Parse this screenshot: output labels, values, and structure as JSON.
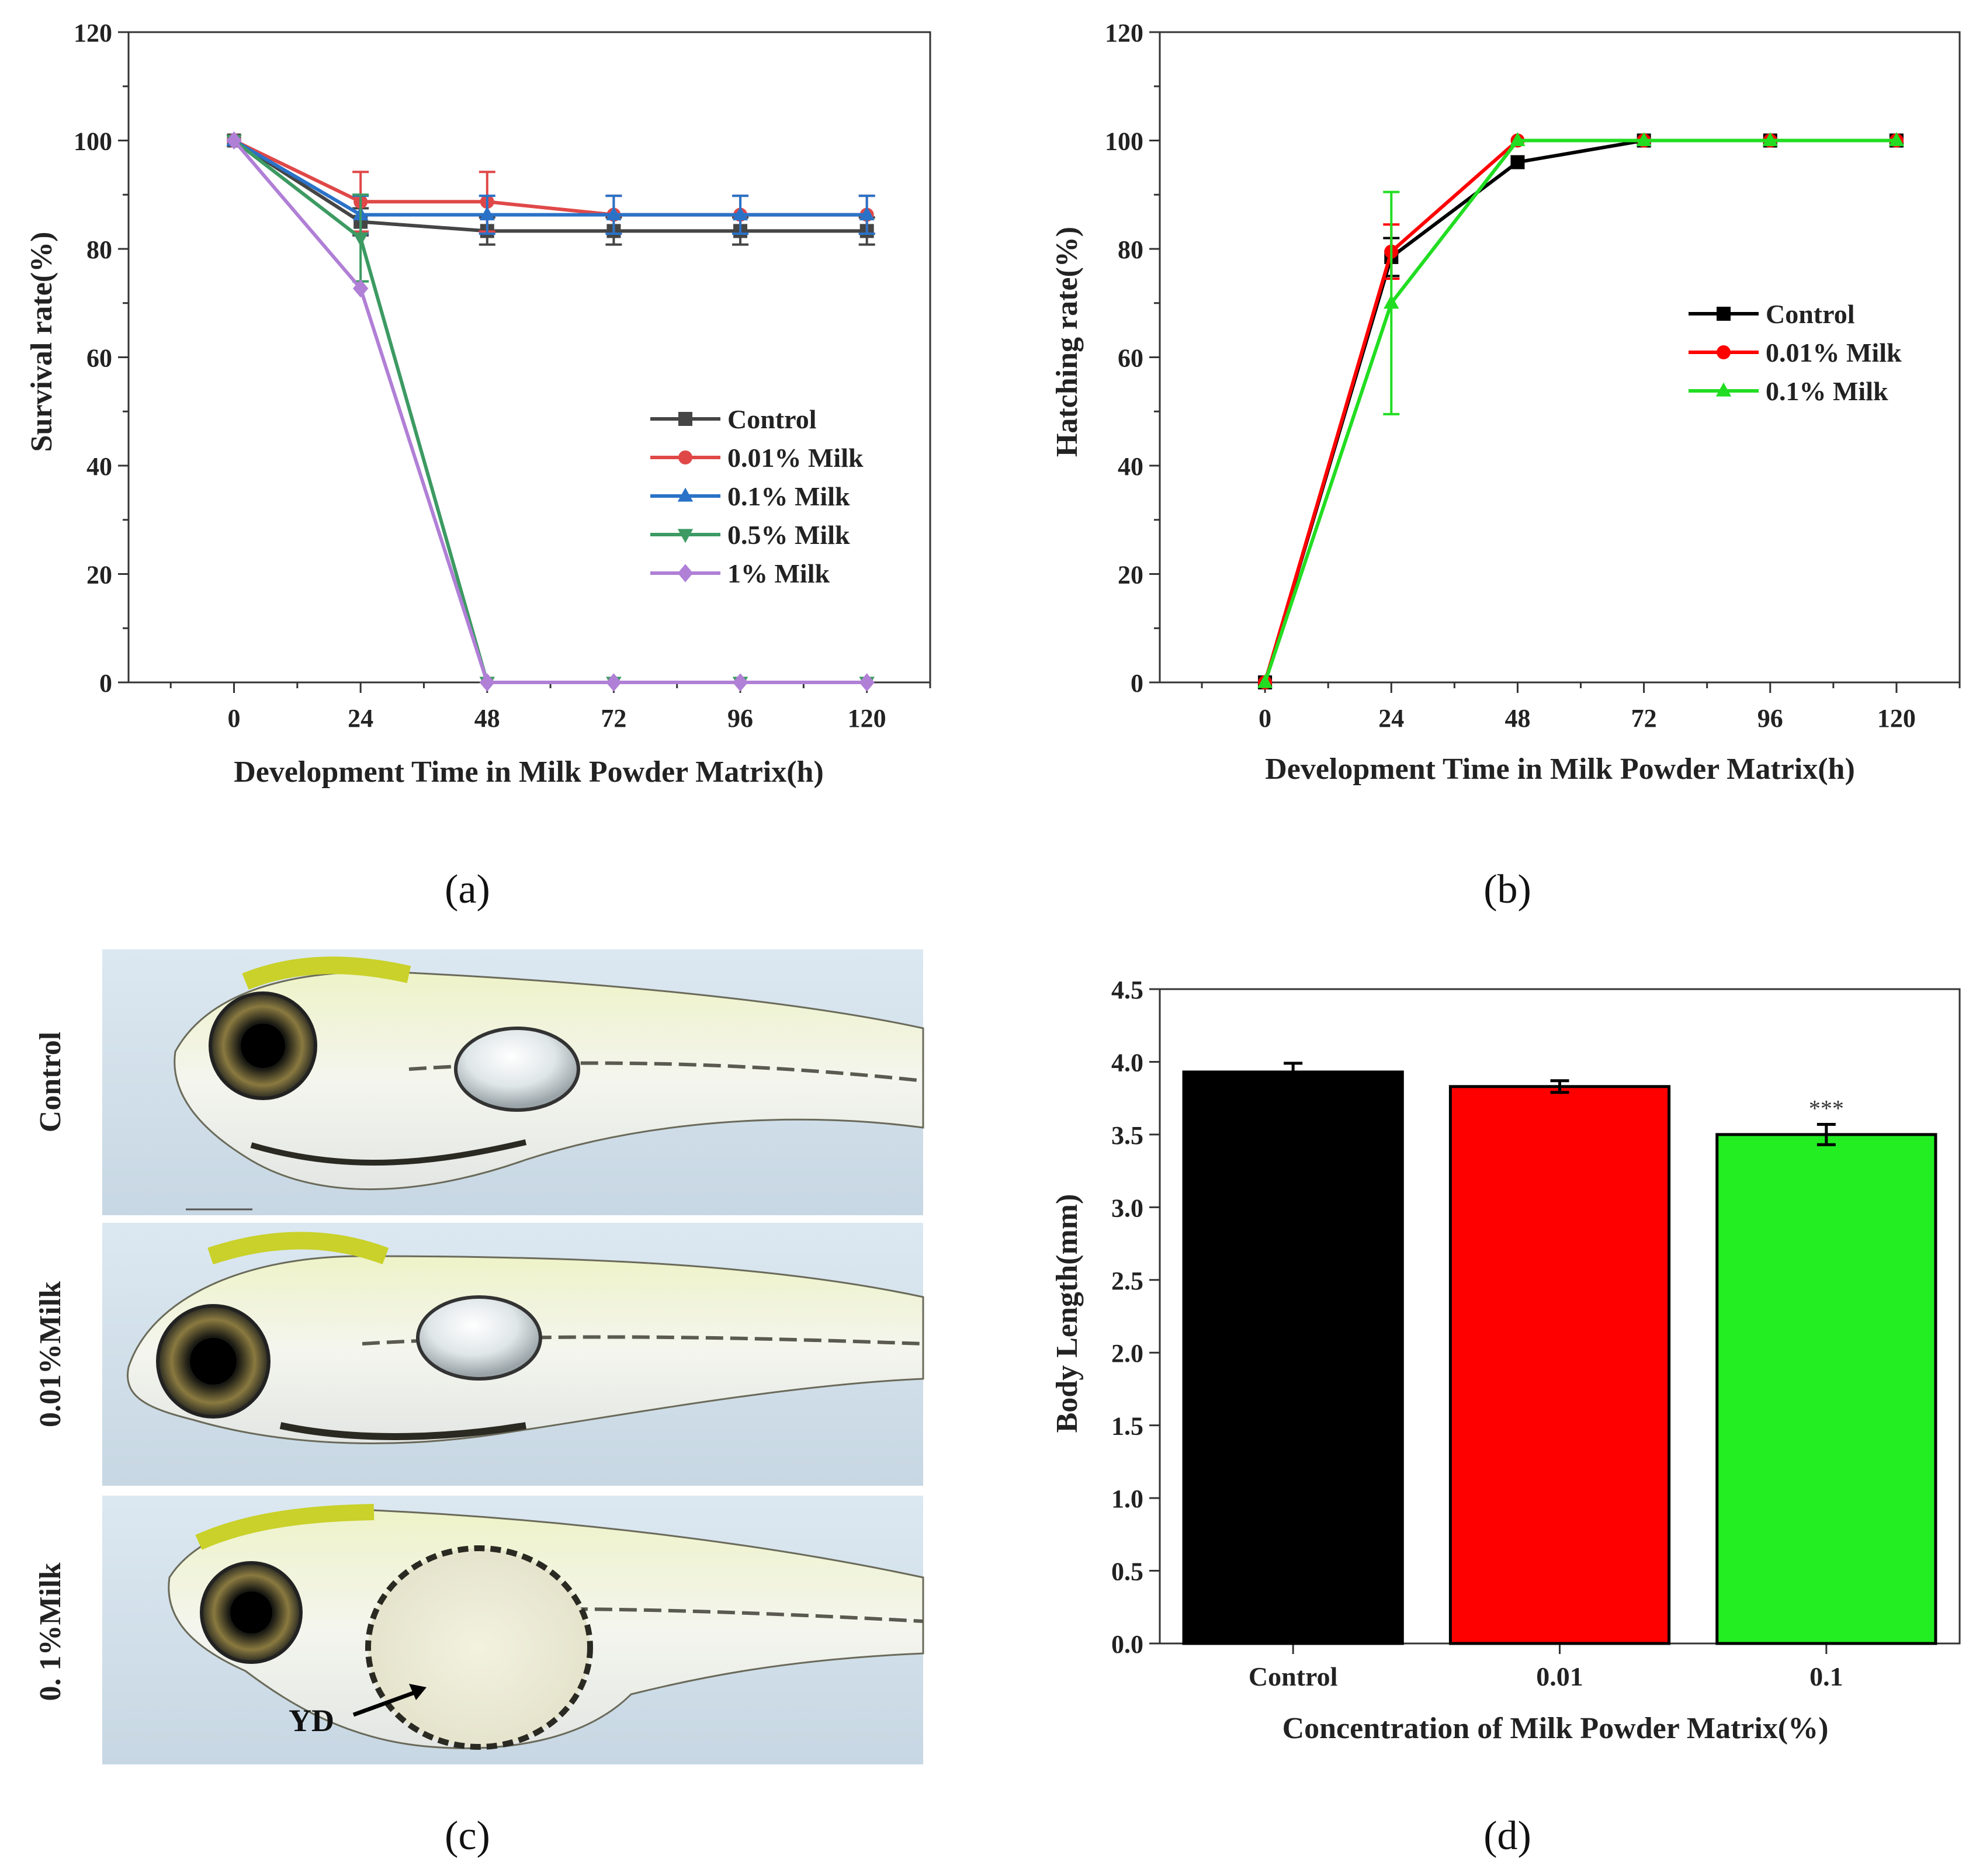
{
  "chart_data": [
    {
      "panel": "(a)",
      "type": "line",
      "xlabel": "Development Time in Milk Powder Matrix(h)",
      "ylabel": "Survival rate(%)",
      "x": [
        0,
        24,
        48,
        72,
        96,
        120
      ],
      "xlim": [
        -20,
        132
      ],
      "ylim": [
        0,
        120
      ],
      "yticks": [
        0,
        20,
        40,
        60,
        80,
        100,
        120
      ],
      "legend_position": "right-middle",
      "series": [
        {
          "name": "Control",
          "color": "#454545",
          "marker": "square",
          "values": [
            100,
            85,
            83.3,
            83.3,
            83.3,
            83.3
          ],
          "errors": [
            0,
            2.5,
            2.5,
            2.5,
            2.5,
            2.5
          ]
        },
        {
          "name": "0.01% Milk",
          "color": "#e04848",
          "marker": "circle",
          "values": [
            100,
            88.7,
            88.7,
            86.3,
            86.3,
            86.3
          ],
          "errors": [
            0,
            5.5,
            5.5,
            3.5,
            3.5,
            3.5
          ]
        },
        {
          "name": "0.1% Milk",
          "color": "#2a72c8",
          "marker": "triangle-up",
          "values": [
            100,
            86.3,
            86.3,
            86.3,
            86.3,
            86.3
          ],
          "errors": [
            0,
            3.5,
            3.5,
            3.5,
            3.5,
            3.5
          ]
        },
        {
          "name": "0.5% Milk",
          "color": "#3c9a62",
          "marker": "triangle-down",
          "values": [
            100,
            82,
            0,
            0,
            0,
            0
          ],
          "errors": [
            0,
            8,
            0,
            0,
            0,
            0
          ]
        },
        {
          "name": "1% Milk",
          "color": "#b07fd6",
          "marker": "diamond",
          "values": [
            100,
            72.7,
            0,
            0,
            0,
            0
          ],
          "errors": [
            0,
            0,
            0,
            0,
            0,
            0
          ]
        }
      ]
    },
    {
      "panel": "(b)",
      "type": "line",
      "xlabel": "Development Time in Milk Powder Matrix(h)",
      "ylabel": "Hatching rate(%)",
      "x": [
        0,
        24,
        48,
        72,
        96,
        120
      ],
      "xlim": [
        -20,
        132
      ],
      "ylim": [
        0,
        120
      ],
      "yticks": [
        0,
        20,
        40,
        60,
        80,
        100,
        120
      ],
      "legend_position": "right-middle",
      "series": [
        {
          "name": "Control",
          "color": "#000000",
          "marker": "square",
          "values": [
            0,
            78.5,
            96,
            100,
            100,
            100
          ],
          "errors": [
            0,
            3.5,
            0,
            0,
            0,
            0
          ]
        },
        {
          "name": "0.01% Milk",
          "color": "#ff0000",
          "marker": "circle",
          "values": [
            0,
            79.5,
            100,
            100,
            100,
            100
          ],
          "errors": [
            0,
            5,
            0,
            0,
            0,
            0
          ]
        },
        {
          "name": "0.1% Milk",
          "color": "#22dd22",
          "marker": "triangle-up",
          "values": [
            0,
            70,
            100,
            100,
            100,
            100
          ],
          "errors": [
            0,
            20.5,
            0,
            0,
            0,
            0
          ]
        }
      ]
    },
    {
      "panel": "(d)",
      "type": "bar",
      "xlabel": "Concentration of Milk Powder Matrix(%)",
      "ylabel": "Body Length(mm)",
      "categories": [
        "Control",
        "0.01",
        "0.1"
      ],
      "values": [
        3.93,
        3.83,
        3.5
      ],
      "errors": [
        0.06,
        0.04,
        0.07
      ],
      "colors": [
        "#000000",
        "#ff0000",
        "#22ee22"
      ],
      "annotations": [
        "",
        "",
        "***"
      ],
      "ylim": [
        0,
        4.5
      ],
      "yticks": [
        0.0,
        0.5,
        1.0,
        1.5,
        2.0,
        2.5,
        3.0,
        3.5,
        4.0,
        4.5
      ]
    }
  ],
  "photo_panel": {
    "panel": "(c)",
    "rows": [
      "Control",
      "0.01%Milk",
      "0. 1%Milk"
    ],
    "annotation": "YD"
  }
}
